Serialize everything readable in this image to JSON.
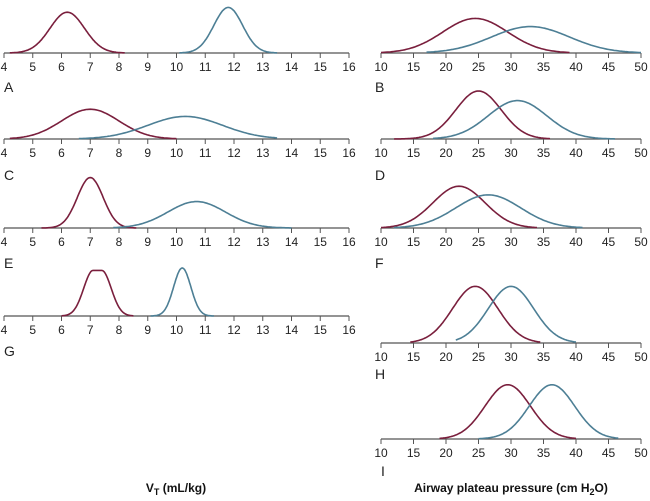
{
  "colors": {
    "red": "#7a1f3d",
    "blue": "#4d7f95",
    "axis": "#555555"
  },
  "axis_labels": {
    "left_main": "V",
    "left_sub": "T",
    "left_rest": " (mL/kg)",
    "right_main": "Airway plateau pressure (cm H",
    "right_sub": "2",
    "right_rest": "O)"
  },
  "chart_data": [
    {
      "type": "line",
      "panel": "A",
      "xlim": [
        4,
        16
      ],
      "ticks": [
        4,
        5,
        6,
        7,
        8,
        9,
        10,
        11,
        12,
        13,
        14,
        15,
        16
      ],
      "series": [
        {
          "color": "red",
          "mean": 6.2,
          "sd": 0.6,
          "range": [
            4.2,
            8.2
          ],
          "peak": 0.85
        },
        {
          "color": "blue",
          "mean": 11.8,
          "sd": 0.5,
          "range": [
            10.1,
            13.5
          ],
          "peak": 0.95
        }
      ]
    },
    {
      "type": "line",
      "panel": "B",
      "xlim": [
        10,
        50
      ],
      "ticks": [
        10,
        15,
        20,
        25,
        30,
        35,
        40,
        45,
        50
      ],
      "series": [
        {
          "color": "red",
          "mean": 24.5,
          "sd": 5,
          "range": [
            10,
            39
          ],
          "peak": 0.72
        },
        {
          "color": "blue",
          "mean": 33,
          "sd": 6,
          "range": [
            17,
            50
          ],
          "peak": 0.55
        }
      ]
    },
    {
      "type": "line",
      "panel": "C",
      "xlim": [
        4,
        16
      ],
      "ticks": [
        4,
        5,
        6,
        7,
        8,
        9,
        10,
        11,
        12,
        13,
        14,
        15,
        16
      ],
      "series": [
        {
          "color": "red",
          "mean": 7.0,
          "sd": 1.0,
          "range": [
            4.2,
            10
          ],
          "peak": 0.62
        },
        {
          "color": "blue",
          "mean": 10.3,
          "sd": 1.3,
          "range": [
            6.6,
            13.5
          ],
          "peak": 0.47
        }
      ]
    },
    {
      "type": "line",
      "panel": "D",
      "xlim": [
        10,
        50
      ],
      "ticks": [
        10,
        15,
        20,
        25,
        30,
        35,
        40,
        45,
        50
      ],
      "series": [
        {
          "color": "red",
          "mean": 25,
          "sd": 3.5,
          "range": [
            12,
            36
          ],
          "peak": 1.0
        },
        {
          "color": "blue",
          "mean": 31,
          "sd": 4.5,
          "range": [
            18,
            46
          ],
          "peak": 0.8
        }
      ]
    },
    {
      "type": "line",
      "panel": "E",
      "xlim": [
        4,
        16
      ],
      "ticks": [
        4,
        5,
        6,
        7,
        8,
        9,
        10,
        11,
        12,
        13,
        14,
        15,
        16
      ],
      "series": [
        {
          "color": "red",
          "mean": 7.0,
          "sd": 0.45,
          "range": [
            5.3,
            8.6
          ],
          "peak": 1.05
        },
        {
          "color": "blue",
          "mean": 10.7,
          "sd": 1.0,
          "range": [
            7.8,
            14
          ],
          "peak": 0.55
        }
      ]
    },
    {
      "type": "line",
      "panel": "F",
      "xlim": [
        10,
        50
      ],
      "ticks": [
        10,
        15,
        20,
        25,
        30,
        35,
        40,
        45,
        50
      ],
      "series": [
        {
          "color": "red",
          "mean": 22,
          "sd": 4,
          "range": [
            10,
            34
          ],
          "peak": 0.87
        },
        {
          "color": "blue",
          "mean": 26.5,
          "sd": 5,
          "range": [
            12,
            41
          ],
          "peak": 0.69
        }
      ]
    },
    {
      "type": "line",
      "panel": "G",
      "xlim": [
        4,
        16
      ],
      "ticks": [
        4,
        5,
        6,
        7,
        8,
        9,
        10,
        11,
        12,
        13,
        14,
        15,
        16
      ],
      "series": [
        {
          "color": "red",
          "mean": 7.25,
          "sd": 0.33,
          "plateau": 0.15,
          "range": [
            6,
            8.5
          ],
          "peak": 0.95
        },
        {
          "color": "blue",
          "mean": 10.2,
          "sd": 0.3,
          "range": [
            9.1,
            11.3
          ],
          "peak": 1.0
        }
      ]
    },
    {
      "type": "line",
      "panel": "H",
      "xlim": [
        10,
        50
      ],
      "ticks": [
        10,
        15,
        20,
        25,
        30,
        35,
        40,
        45,
        50
      ],
      "series": [
        {
          "color": "red",
          "mean": 24.5,
          "sd": 3.5,
          "range": [
            14.5,
            34.5
          ],
          "peak": 1.18
        },
        {
          "color": "blue",
          "mean": 30,
          "sd": 3.5,
          "range": [
            21.5,
            40
          ],
          "peak": 1.18
        }
      ]
    },
    {
      "type": "line",
      "panel": "I",
      "xlim": [
        10,
        50
      ],
      "ticks": [
        10,
        15,
        20,
        25,
        30,
        35,
        40,
        45,
        50
      ],
      "series": [
        {
          "color": "red",
          "mean": 29.5,
          "sd": 3.5,
          "range": [
            19,
            40
          ],
          "peak": 1.13
        },
        {
          "color": "blue",
          "mean": 36.3,
          "sd": 3.5,
          "range": [
            25,
            46.5
          ],
          "peak": 1.13
        }
      ]
    }
  ]
}
